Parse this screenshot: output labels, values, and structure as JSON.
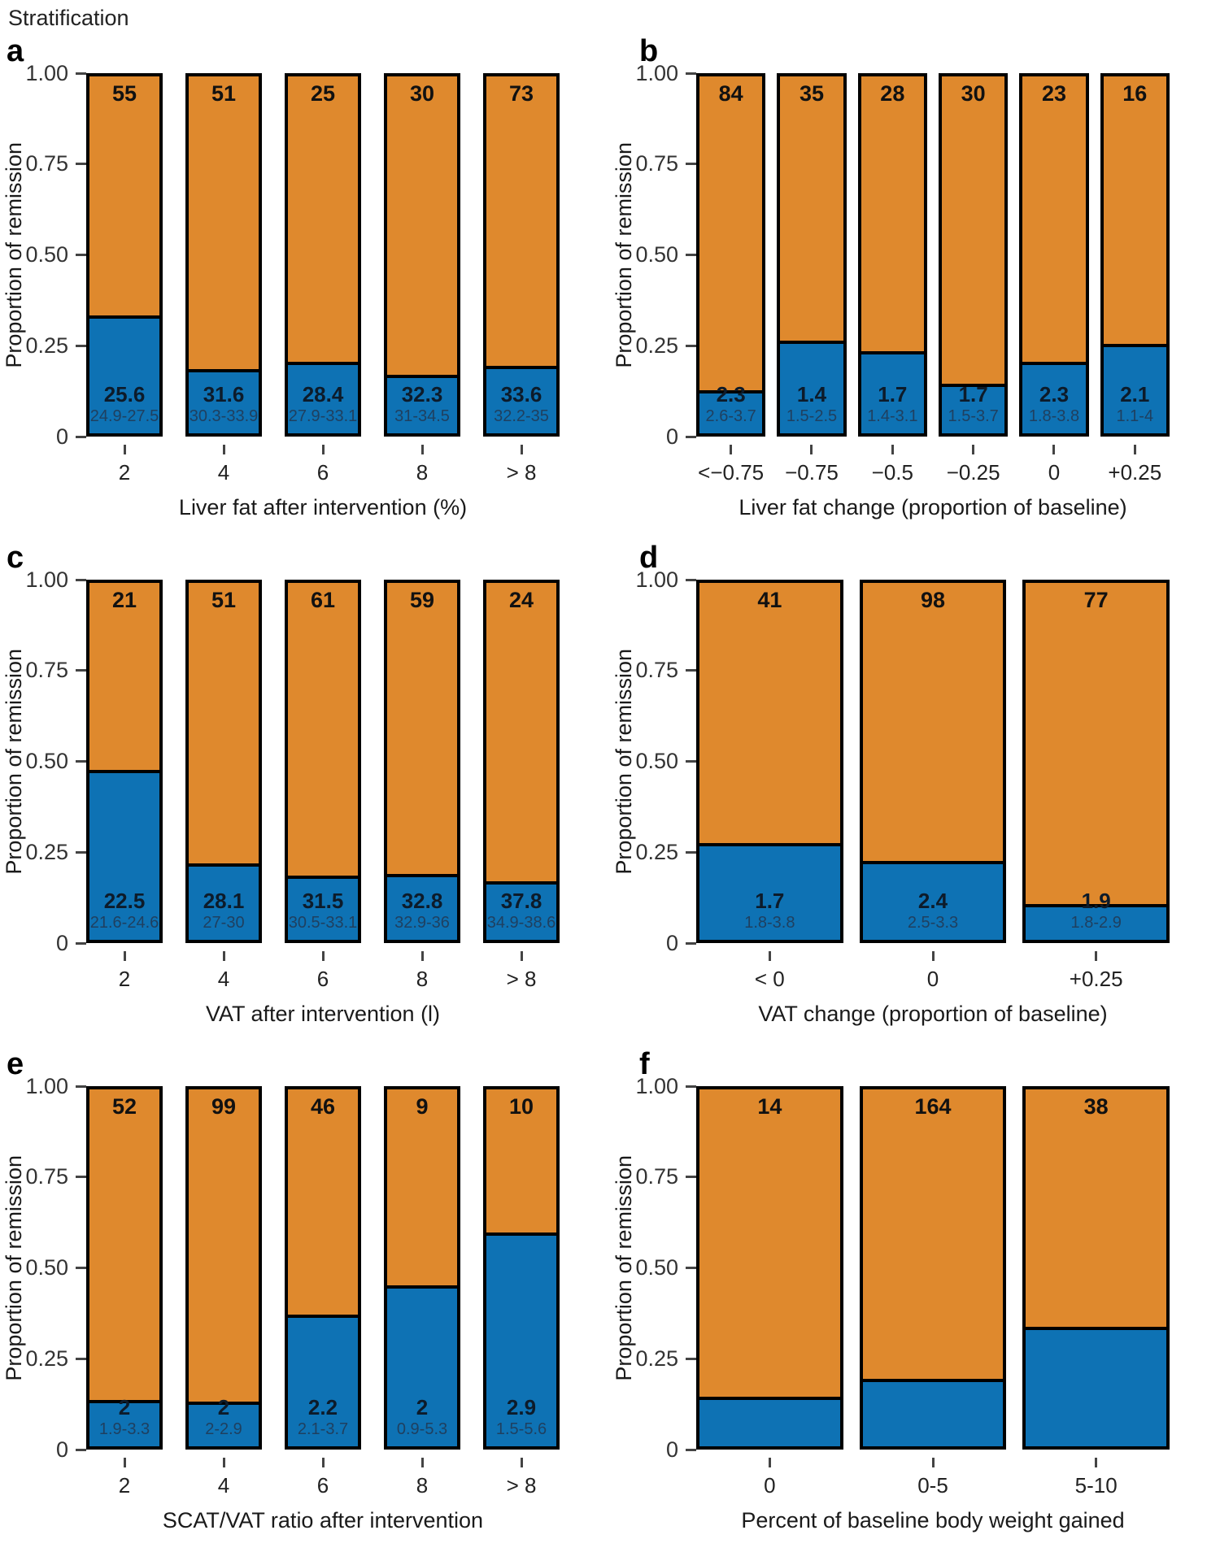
{
  "figure_title": "Stratification",
  "colors": {
    "remission_orange": "#DF892D",
    "no_remission_blue": "#0E72B4",
    "bar_border": "#000000",
    "value_text": "#0D1B2A",
    "ci_text": "#1F4060"
  },
  "y_axis": {
    "label": "Proportion of remission",
    "ticks": [
      "1.00",
      "0.75",
      "0.50",
      "0.25",
      "0"
    ],
    "range": [
      0,
      1
    ]
  },
  "chart_data": [
    {
      "panel": "a",
      "type": "bar",
      "stacked": true,
      "xlabel": "Liver fat after intervention (%)",
      "ylabel": "Proportion of remission",
      "ylim": [
        0,
        1
      ],
      "categories": [
        "2",
        "4",
        "6",
        "8",
        "> 8"
      ],
      "counts": [
        55,
        51,
        25,
        30,
        73
      ],
      "series": [
        {
          "name": "no_remission_blue",
          "values": [
            0.33,
            0.18,
            0.2,
            0.165,
            0.19
          ]
        },
        {
          "name": "remission_orange",
          "values": [
            0.67,
            0.82,
            0.8,
            0.835,
            0.81
          ]
        }
      ],
      "bar_value_labels": [
        {
          "value": "25.6",
          "ci": "24.9-27.5"
        },
        {
          "value": "31.6",
          "ci": "30.3-33.9"
        },
        {
          "value": "28.4",
          "ci": "27.9-33.1"
        },
        {
          "value": "32.3",
          "ci": "31-34.5"
        },
        {
          "value": "33.6",
          "ci": "32.2-35"
        }
      ]
    },
    {
      "panel": "b",
      "type": "bar",
      "stacked": true,
      "xlabel": "Liver fat change (proportion of baseline)",
      "ylabel": "Proportion of remission",
      "ylim": [
        0,
        1
      ],
      "categories": [
        "<−0.75",
        "−0.75",
        "−0.5",
        "−0.25",
        "0",
        "+0.25"
      ],
      "counts": [
        84,
        35,
        28,
        30,
        23,
        16
      ],
      "series": [
        {
          "name": "no_remission_blue",
          "values": [
            0.12,
            0.26,
            0.23,
            0.14,
            0.2,
            0.25
          ]
        },
        {
          "name": "remission_orange",
          "values": [
            0.88,
            0.74,
            0.77,
            0.86,
            0.8,
            0.75
          ]
        }
      ],
      "bar_value_labels": [
        {
          "value": "2.3",
          "ci": "2.6-3.7"
        },
        {
          "value": "1.4",
          "ci": "1.5-2.5"
        },
        {
          "value": "1.7",
          "ci": "1.4-3.1"
        },
        {
          "value": "1.7",
          "ci": "1.5-3.7"
        },
        {
          "value": "2.3",
          "ci": "1.8-3.8"
        },
        {
          "value": "2.1",
          "ci": "1.1-4"
        }
      ]
    },
    {
      "panel": "c",
      "type": "bar",
      "stacked": true,
      "xlabel": "VAT after intervention (l)",
      "ylabel": "Proportion of remission",
      "ylim": [
        0,
        1
      ],
      "categories": [
        "2",
        "4",
        "6",
        "8",
        "> 8"
      ],
      "counts": [
        21,
        51,
        61,
        59,
        24
      ],
      "series": [
        {
          "name": "no_remission_blue",
          "values": [
            0.475,
            0.215,
            0.18,
            0.185,
            0.165
          ]
        },
        {
          "name": "remission_orange",
          "values": [
            0.525,
            0.785,
            0.82,
            0.815,
            0.835
          ]
        }
      ],
      "bar_value_labels": [
        {
          "value": "22.5",
          "ci": "21.6-24.6"
        },
        {
          "value": "28.1",
          "ci": "27-30"
        },
        {
          "value": "31.5",
          "ci": "30.5-33.1"
        },
        {
          "value": "32.8",
          "ci": "32.9-36"
        },
        {
          "value": "37.8",
          "ci": "34.9-38.6"
        }
      ]
    },
    {
      "panel": "d",
      "type": "bar",
      "stacked": true,
      "xlabel": "VAT change (proportion of baseline)",
      "ylabel": "Proportion of remission",
      "ylim": [
        0,
        1
      ],
      "categories": [
        "< 0",
        "0",
        "+0.25"
      ],
      "counts": [
        41,
        98,
        77
      ],
      "series": [
        {
          "name": "no_remission_blue",
          "values": [
            0.27,
            0.22,
            0.1
          ]
        },
        {
          "name": "remission_orange",
          "values": [
            0.73,
            0.78,
            0.9
          ]
        }
      ],
      "bar_value_labels": [
        {
          "value": "1.7",
          "ci": "1.8-3.8"
        },
        {
          "value": "2.4",
          "ci": "2.5-3.3"
        },
        {
          "value": "1.9",
          "ci": "1.8-2.9"
        }
      ]
    },
    {
      "panel": "e",
      "type": "bar",
      "stacked": true,
      "xlabel": "SCAT/VAT ratio after intervention",
      "ylabel": "Proportion of remission",
      "ylim": [
        0,
        1
      ],
      "categories": [
        "2",
        "4",
        "6",
        "8",
        "> 8"
      ],
      "counts": [
        52,
        99,
        46,
        9,
        10
      ],
      "series": [
        {
          "name": "no_remission_blue",
          "values": [
            0.13,
            0.125,
            0.37,
            0.45,
            0.6
          ]
        },
        {
          "name": "remission_orange",
          "values": [
            0.87,
            0.875,
            0.63,
            0.55,
            0.4
          ]
        }
      ],
      "bar_value_labels": [
        {
          "value": "2",
          "ci": "1.9-3.3"
        },
        {
          "value": "2",
          "ci": "2-2.9"
        },
        {
          "value": "2.2",
          "ci": "2.1-3.7"
        },
        {
          "value": "2",
          "ci": "0.9-5.3"
        },
        {
          "value": "2.9",
          "ci": "1.5-5.6"
        }
      ]
    },
    {
      "panel": "f",
      "type": "bar",
      "stacked": true,
      "xlabel": "Percent of baseline body weight gained",
      "ylabel": "Proportion of remission",
      "ylim": [
        0,
        1
      ],
      "categories": [
        "0",
        "0-5",
        "5-10"
      ],
      "counts": [
        14,
        164,
        38
      ],
      "series": [
        {
          "name": "no_remission_blue",
          "values": [
            0.14,
            0.19,
            0.335
          ]
        },
        {
          "name": "remission_orange",
          "values": [
            0.86,
            0.81,
            0.665
          ]
        }
      ],
      "bar_value_labels": [
        null,
        null,
        null
      ]
    }
  ]
}
